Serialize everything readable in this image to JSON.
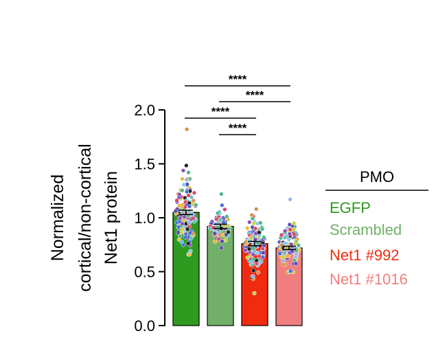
{
  "chart_data": {
    "type": "bar",
    "ylabel_lines": [
      "Normalized",
      "cortical/non-cortical",
      "Net1 protein"
    ],
    "ylim": [
      0,
      2.0
    ],
    "yticks": [
      0.0,
      0.5,
      1.0,
      1.5,
      2.0
    ],
    "ytick_labels": [
      "0.0",
      "0.5",
      "1.0",
      "1.5",
      "2.0"
    ],
    "categories": [
      "EGFP",
      "Scrambled",
      "Net1 #992",
      "Net1 #1016"
    ],
    "values": [
      1.05,
      0.92,
      0.76,
      0.72
    ],
    "errors": [
      0.02,
      0.02,
      0.02,
      0.015
    ],
    "colors": [
      "#2e9a1f",
      "#72b06a",
      "#f02b10",
      "#f07e7e"
    ],
    "significance": [
      {
        "from": 0,
        "to": 3,
        "label": "****"
      },
      {
        "from": 1,
        "to": 3,
        "label": "****"
      },
      {
        "from": 0,
        "to": 2,
        "label": "****"
      },
      {
        "from": 1,
        "to": 2,
        "label": "****"
      }
    ],
    "legend": {
      "title": "PMO",
      "items": [
        "EGFP",
        "Scrambled",
        "Net1 #992",
        "Net1 #1016"
      ]
    },
    "points": {
      "ranges": [
        [
          0.66,
          1.82
        ],
        [
          0.72,
          1.22
        ],
        [
          0.3,
          1.08
        ],
        [
          0.49,
          1.17
        ]
      ],
      "counts": [
        150,
        70,
        130,
        120
      ],
      "palette": [
        "#5a4ab0",
        "#e8b83a",
        "#5ec0c8",
        "#4a6ed8",
        "#88c8f0",
        "#d84a6a",
        "#c8d040",
        "#8a50b8",
        "#d8904a",
        "#4ab888",
        "#202020",
        "#9ab0e8"
      ]
    }
  }
}
